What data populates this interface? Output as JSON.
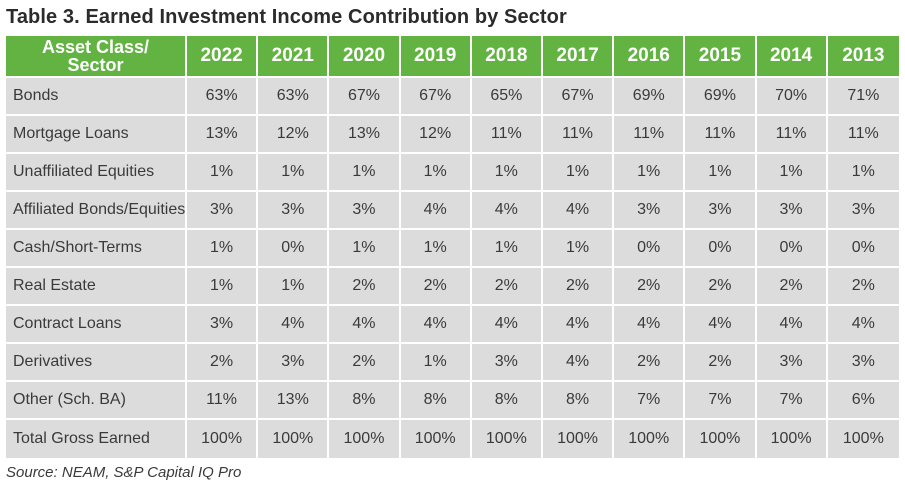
{
  "title": "Table 3. Earned Investment Income Contribution by Sector",
  "header": {
    "label_line1": "Asset Class/",
    "label_line2": "Sector",
    "years": [
      "2022",
      "2021",
      "2020",
      "2019",
      "2018",
      "2017",
      "2016",
      "2015",
      "2014",
      "2013"
    ]
  },
  "rows": [
    {
      "label": "Bonds",
      "values": [
        "63%",
        "63%",
        "67%",
        "67%",
        "65%",
        "67%",
        "69%",
        "69%",
        "70%",
        "71%"
      ]
    },
    {
      "label": "Mortgage Loans",
      "values": [
        "13%",
        "12%",
        "13%",
        "12%",
        "11%",
        "11%",
        "11%",
        "11%",
        "11%",
        "11%"
      ]
    },
    {
      "label": "Unaffiliated Equities",
      "values": [
        "1%",
        "1%",
        "1%",
        "1%",
        "1%",
        "1%",
        "1%",
        "1%",
        "1%",
        "1%"
      ]
    },
    {
      "label": "Affiliated Bonds/Equities",
      "values": [
        "3%",
        "3%",
        "3%",
        "4%",
        "4%",
        "4%",
        "3%",
        "3%",
        "3%",
        "3%"
      ]
    },
    {
      "label": "Cash/Short-Terms",
      "values": [
        "1%",
        "0%",
        "1%",
        "1%",
        "1%",
        "1%",
        "0%",
        "0%",
        "0%",
        "0%"
      ]
    },
    {
      "label": "Real Estate",
      "values": [
        "1%",
        "1%",
        "2%",
        "2%",
        "2%",
        "2%",
        "2%",
        "2%",
        "2%",
        "2%"
      ]
    },
    {
      "label": "Contract Loans",
      "values": [
        "3%",
        "4%",
        "4%",
        "4%",
        "4%",
        "4%",
        "4%",
        "4%",
        "4%",
        "4%"
      ]
    },
    {
      "label": "Derivatives",
      "values": [
        "2%",
        "3%",
        "2%",
        "1%",
        "3%",
        "4%",
        "2%",
        "2%",
        "3%",
        "3%"
      ]
    },
    {
      "label": "Other (Sch. BA)",
      "values": [
        "11%",
        "13%",
        "8%",
        "8%",
        "8%",
        "8%",
        "7%",
        "7%",
        "7%",
        "6%"
      ]
    },
    {
      "label": "Total Gross Earned",
      "values": [
        "100%",
        "100%",
        "100%",
        "100%",
        "100%",
        "100%",
        "100%",
        "100%",
        "100%",
        "100%"
      ]
    }
  ],
  "source": "Source: NEAM, S&P Capital IQ Pro",
  "colors": {
    "header_bg": "#62b342",
    "cell_bg": "#dcdcdc",
    "text": "#3a3a3a"
  }
}
